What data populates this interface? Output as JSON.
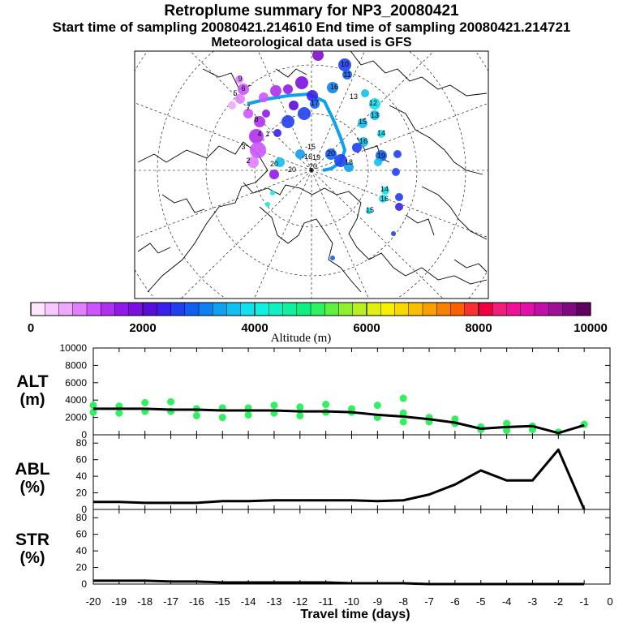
{
  "header": {
    "title": "Retroplume summary for NP3_20080421",
    "sampling": "Start time of sampling 20080421.214610     End time of sampling 20080421.214721",
    "met": "Meteorological data used is GFS"
  },
  "colorbar": {
    "ticks": [
      "0",
      "2000",
      "4000",
      "6000",
      "8000",
      "10000"
    ],
    "label": "Altitude (m)",
    "colors": [
      "#ffe8ff",
      "#f7c8ff",
      "#eea8ff",
      "#e080ff",
      "#cc55ff",
      "#b030f0",
      "#9018e8",
      "#7a10e0",
      "#5a0cd8",
      "#3a20e8",
      "#2040f0",
      "#1060f0",
      "#1080f0",
      "#10a0f0",
      "#10c0f0",
      "#10e0f0",
      "#10f0e0",
      "#10f0c0",
      "#10f0a0",
      "#10f080",
      "#30f060",
      "#60f040",
      "#90f030",
      "#b8f020",
      "#e0f010",
      "#f8f000",
      "#f8d800",
      "#f8c000",
      "#f8a000",
      "#f88000",
      "#f86000",
      "#f83030",
      "#f00040",
      "#f0207a",
      "#f01098",
      "#e010a8",
      "#c010a8",
      "#a01098",
      "#800880",
      "#600060"
    ]
  },
  "map_labels": {
    "days": [
      "10",
      "11",
      "16",
      "12",
      "13",
      "15",
      "14",
      "16",
      "19",
      "18",
      "17",
      "20",
      "19",
      "9",
      "6",
      "5",
      "7",
      "8",
      "3",
      "2",
      "4",
      "1",
      "20",
      "13",
      "14",
      "16",
      "15"
    ],
    "circles": [
      "-15",
      "-16",
      "-20",
      "-20"
    ]
  },
  "panels": [
    {
      "name": "ALT",
      "unit": "(m)",
      "yticks": [
        "0",
        "2000",
        "4000",
        "6000",
        "8000",
        "10000"
      ]
    },
    {
      "name": "ABL",
      "unit": "(%)",
      "yticks": [
        "0",
        "20",
        "40",
        "60",
        "80"
      ]
    },
    {
      "name": "STR",
      "unit": "(%)",
      "yticks": [
        "0",
        "20",
        "40",
        "60",
        "80"
      ]
    }
  ],
  "xaxis": {
    "ticks": [
      "-20",
      "-19",
      "-18",
      "-17",
      "-16",
      "-15",
      "-14",
      "-13",
      "-12",
      "-11",
      "-10",
      "-9",
      "-8",
      "-7",
      "-6",
      "-5",
      "-4",
      "-3",
      "-2",
      "-1",
      "0"
    ],
    "label": "Travel time (days)"
  },
  "chart_data": [
    {
      "type": "line",
      "title": "ALT",
      "ylabel": "ALT (m)",
      "xlabel": "Travel time (days)",
      "xlim": [
        -20,
        0
      ],
      "ylim": [
        0,
        10000
      ],
      "x": [
        -20,
        -19,
        -18,
        -17,
        -16,
        -15,
        -14,
        -13,
        -12,
        -11,
        -10,
        -9,
        -8,
        -7,
        -6,
        -5,
        -4,
        -3,
        -2,
        -1
      ],
      "values": [
        3000,
        3000,
        3000,
        2900,
        2900,
        2800,
        2800,
        2800,
        2700,
        2700,
        2600,
        2300,
        2100,
        1800,
        1400,
        700,
        900,
        1000,
        200,
        1100
      ],
      "scatter": [
        [
          -20,
          3400
        ],
        [
          -20,
          2600
        ],
        [
          -19,
          3300
        ],
        [
          -19,
          2500
        ],
        [
          -18,
          3700
        ],
        [
          -18,
          2700
        ],
        [
          -17,
          3800
        ],
        [
          -17,
          2700
        ],
        [
          -16,
          3000
        ],
        [
          -16,
          2200
        ],
        [
          -15,
          3100
        ],
        [
          -15,
          2000
        ],
        [
          -14,
          3100
        ],
        [
          -14,
          2300
        ],
        [
          -13,
          3400
        ],
        [
          -13,
          2500
        ],
        [
          -12,
          3200
        ],
        [
          -12,
          2200
        ],
        [
          -11,
          3500
        ],
        [
          -11,
          2600
        ],
        [
          -10,
          3000
        ],
        [
          -10,
          2600
        ],
        [
          -9,
          3400
        ],
        [
          -9,
          2000
        ],
        [
          -8,
          4200
        ],
        [
          -8,
          2500
        ],
        [
          -8,
          1500
        ],
        [
          -7,
          2000
        ],
        [
          -7,
          1500
        ],
        [
          -6,
          1800
        ],
        [
          -6,
          1300
        ],
        [
          -5,
          900
        ],
        [
          -5,
          600
        ],
        [
          -4,
          1300
        ],
        [
          -4,
          500
        ],
        [
          -3,
          1000
        ],
        [
          -3,
          600
        ],
        [
          -2,
          300
        ],
        [
          -1,
          1200
        ]
      ],
      "scatter_color": "#30f060"
    },
    {
      "type": "line",
      "title": "ABL",
      "ylabel": "ABL (%)",
      "xlabel": "Travel time (days)",
      "xlim": [
        -20,
        0
      ],
      "ylim": [
        0,
        90
      ],
      "x": [
        -20,
        -19,
        -18,
        -17,
        -16,
        -15,
        -14,
        -13,
        -12,
        -11,
        -10,
        -9,
        -8,
        -7,
        -6,
        -5,
        -4,
        -3,
        -2,
        -1
      ],
      "values": [
        9,
        9,
        8,
        8,
        8,
        10,
        10,
        11,
        11,
        11,
        11,
        10,
        11,
        18,
        30,
        47,
        35,
        35,
        72,
        0
      ]
    },
    {
      "type": "line",
      "title": "STR",
      "ylabel": "STR (%)",
      "xlabel": "Travel time (days)",
      "xlim": [
        -20,
        0
      ],
      "ylim": [
        0,
        90
      ],
      "x": [
        -20,
        -19,
        -18,
        -17,
        -16,
        -15,
        -14,
        -13,
        -12,
        -11,
        -10,
        -9,
        -8,
        -7,
        -6,
        -5,
        -4,
        -3,
        -2,
        -1
      ],
      "values": [
        4,
        4,
        4,
        3,
        3,
        2,
        2,
        2,
        2,
        2,
        1,
        1,
        1,
        0,
        0,
        0,
        0,
        0,
        0,
        0
      ]
    }
  ]
}
